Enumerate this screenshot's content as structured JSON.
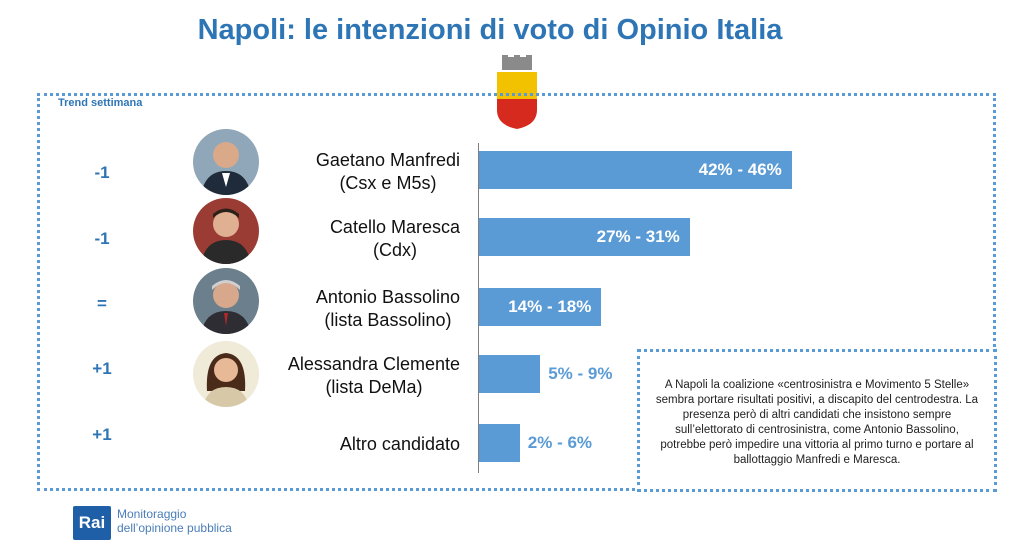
{
  "title": "Napoli: le intenzioni di voto di Opinio Italia",
  "trend_title": "Trend settimana",
  "chart_data": {
    "type": "bar",
    "orientation": "horizontal",
    "categories": [
      "Gaetano Manfredi (Csx e M5s)",
      "Catello Maresca (Cdx)",
      "Antonio Bassolino (lista Bassolino)",
      "Alessandra Clemente (lista DeMa)",
      "Altro candidato"
    ],
    "ranges": [
      [
        42,
        46
      ],
      [
        27,
        31
      ],
      [
        14,
        18
      ],
      [
        5,
        9
      ],
      [
        2,
        6
      ]
    ],
    "value_labels": [
      "42% - 46%",
      "27% - 31%",
      "14% - 18%",
      "5% - 9%",
      "2% - 6%"
    ],
    "trend": [
      "-1",
      "-1",
      "=",
      "+1",
      "+1"
    ],
    "unit": "%",
    "bar_color": "#5b9bd5",
    "label_color_inside": "#ffffff",
    "label_color_outside": "#5b9bd5"
  },
  "candidates": [
    {
      "name": "Gaetano Manfredi",
      "party": "(Csx e M5s)",
      "photo": "portrait-manfredi"
    },
    {
      "name": "Catello Maresca",
      "party": "(Cdx)",
      "photo": "portrait-maresca"
    },
    {
      "name": "Antonio Bassolino",
      "party": "(lista Bassolino)",
      "photo": "portrait-bassolino"
    },
    {
      "name": "Alessandra Clemente",
      "party": "(lista DeMa)",
      "photo": "portrait-clemente"
    },
    {
      "name": "Altro candidato",
      "party": "",
      "photo": ""
    }
  ],
  "note": "A Napoli la coalizione «centrosinistra e Movimento 5 Stelle» sembra portare risultati positivi, a discapito del centrodestra. La presenza però di altri candidati che insistono sempre sull’elettorato di centrosinistra, come Antonio Bassolino, potrebbe però impedire una vittoria al primo turno e portare al ballottaggio Manfredi e Maresca.",
  "footer": {
    "logo": "Rai",
    "line1": "Monitoraggio",
    "line2": "dell’opinione pubblica"
  },
  "crest": {
    "icon": "napoli-crest-icon",
    "top_color": "#f2c200",
    "bottom_color": "#d62a1e"
  }
}
